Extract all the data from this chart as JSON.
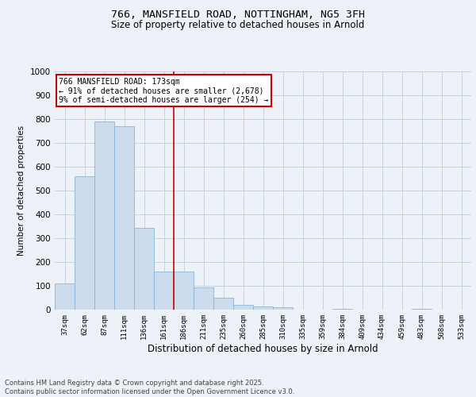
{
  "title_line1": "766, MANSFIELD ROAD, NOTTINGHAM, NG5 3FH",
  "title_line2": "Size of property relative to detached houses in Arnold",
  "xlabel": "Distribution of detached houses by size in Arnold",
  "ylabel": "Number of detached properties",
  "categories": [
    "37sqm",
    "62sqm",
    "87sqm",
    "111sqm",
    "136sqm",
    "161sqm",
    "186sqm",
    "211sqm",
    "235sqm",
    "260sqm",
    "285sqm",
    "310sqm",
    "335sqm",
    "359sqm",
    "384sqm",
    "409sqm",
    "434sqm",
    "459sqm",
    "483sqm",
    "508sqm",
    "533sqm"
  ],
  "values": [
    110,
    560,
    790,
    770,
    345,
    160,
    160,
    95,
    50,
    20,
    15,
    10,
    0,
    0,
    5,
    0,
    0,
    0,
    5,
    0,
    0
  ],
  "bar_color": "#ccdcec",
  "bar_edge_color": "#8ab4d4",
  "grid_color": "#c8d0e0",
  "background_color": "#edf2f9",
  "vline_x": 5.48,
  "vline_color": "#cc0000",
  "annotation_text": "766 MANSFIELD ROAD: 173sqm\n← 91% of detached houses are smaller (2,678)\n9% of semi-detached houses are larger (254) →",
  "annotation_box_color": "#ffffff",
  "annotation_box_edge": "#cc0000",
  "ylim": [
    0,
    1000
  ],
  "yticks": [
    0,
    100,
    200,
    300,
    400,
    500,
    600,
    700,
    800,
    900,
    1000
  ],
  "footnote_line1": "Contains HM Land Registry data © Crown copyright and database right 2025.",
  "footnote_line2": "Contains public sector information licensed under the Open Government Licence v3.0."
}
